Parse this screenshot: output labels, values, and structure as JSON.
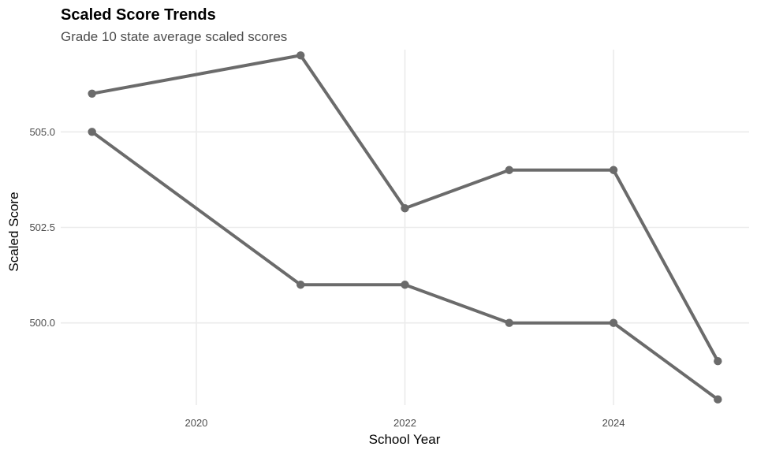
{
  "chart_data": {
    "type": "line",
    "title": "Scaled Score Trends",
    "subtitle": "Grade 10 state average scaled scores",
    "xlabel": "School Year",
    "ylabel": "Scaled Score",
    "x": [
      2019,
      2021,
      2022,
      2023,
      2024,
      2025
    ],
    "xlim": [
      2018.7,
      2025.3
    ],
    "ylim": [
      497.85,
      507.15
    ],
    "x_ticks": [
      2020,
      2022,
      2024
    ],
    "y_ticks": [
      500,
      502.5,
      505
    ],
    "x_tick_labels": [
      "2020",
      "2022",
      "2024"
    ],
    "y_tick_labels": [
      "500.0",
      "502.5",
      "505.0"
    ],
    "grid": true,
    "legend": "none",
    "series": [
      {
        "values": [
          506,
          507,
          503,
          504,
          504,
          499
        ],
        "color": "#6b6b6b"
      },
      {
        "values": [
          505,
          501,
          501,
          500,
          500,
          498
        ],
        "color": "#6b6b6b"
      }
    ]
  }
}
